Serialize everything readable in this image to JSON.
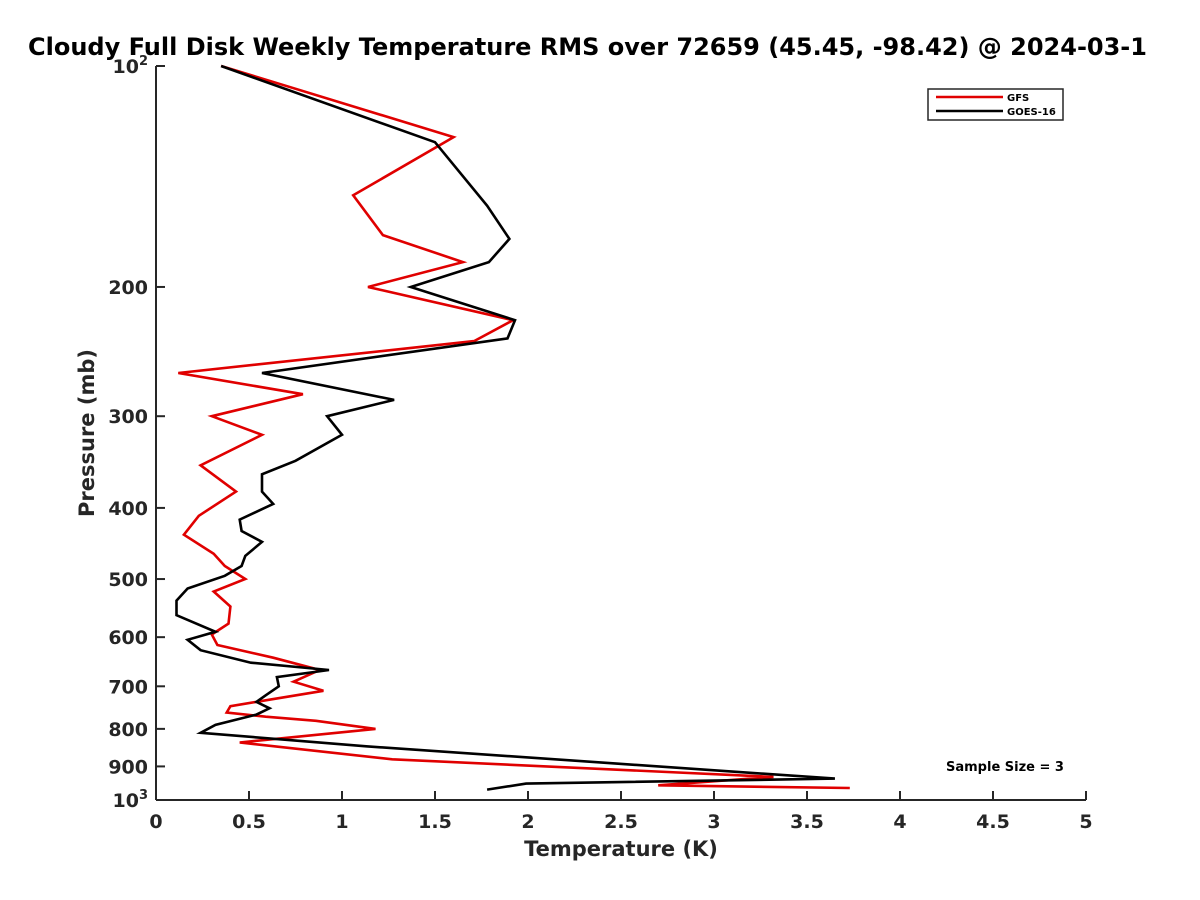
{
  "chart_data": {
    "type": "line",
    "title": "Cloudy Full Disk Weekly Temperature RMS over 72659 (45.45, -98.42) @ 2024-03-1",
    "xlabel": "Temperature (K)",
    "ylabel": "Pressure (mb)",
    "xlim": [
      0,
      5
    ],
    "ylim": [
      100,
      1000
    ],
    "y_scale": "log",
    "y_reversed": true,
    "x_ticks": [
      "0",
      "0.5",
      "1",
      "1.5",
      "2",
      "2.5",
      "3",
      "3.5",
      "4",
      "4.5",
      "5"
    ],
    "y_ticks": [
      {
        "value": 100,
        "base": "10",
        "exp": "2"
      },
      {
        "value": 200,
        "label": "200"
      },
      {
        "value": 300,
        "label": "300"
      },
      {
        "value": 400,
        "label": "400"
      },
      {
        "value": 500,
        "label": "500"
      },
      {
        "value": 600,
        "label": "600"
      },
      {
        "value": 700,
        "label": "700"
      },
      {
        "value": 800,
        "label": "800"
      },
      {
        "value": 900,
        "label": "900"
      },
      {
        "value": 1000,
        "base": "10",
        "exp": "3"
      }
    ],
    "grid": false,
    "legend_position": "top-right",
    "annotation": "Sample Size = 3",
    "series": [
      {
        "name": "GFS",
        "color": "#e00000",
        "points": [
          [
            0.35,
            100
          ],
          [
            1.6,
            125
          ],
          [
            1.06,
            150
          ],
          [
            1.22,
            170
          ],
          [
            1.65,
            185
          ],
          [
            1.14,
            200
          ],
          [
            1.92,
            222
          ],
          [
            1.71,
            237
          ],
          [
            0.12,
            262
          ],
          [
            0.79,
            280
          ],
          [
            0.3,
            300
          ],
          [
            0.57,
            318
          ],
          [
            0.24,
            350
          ],
          [
            0.43,
            380
          ],
          [
            0.23,
            410
          ],
          [
            0.15,
            435
          ],
          [
            0.31,
            462
          ],
          [
            0.37,
            480
          ],
          [
            0.48,
            500
          ],
          [
            0.31,
            520
          ],
          [
            0.4,
            545
          ],
          [
            0.39,
            575
          ],
          [
            0.3,
            595
          ],
          [
            0.33,
            615
          ],
          [
            0.63,
            640
          ],
          [
            0.88,
            665
          ],
          [
            0.74,
            690
          ],
          [
            0.9,
            710
          ],
          [
            0.61,
            730
          ],
          [
            0.4,
            745
          ],
          [
            0.38,
            760
          ],
          [
            0.59,
            770
          ],
          [
            0.86,
            780
          ],
          [
            1.18,
            800
          ],
          [
            0.45,
            835
          ],
          [
            1.27,
            880
          ],
          [
            3.32,
            930
          ],
          [
            2.7,
            955
          ],
          [
            3.73,
            963
          ]
        ]
      },
      {
        "name": "GOES-16",
        "color": "#000000",
        "points": [
          [
            0.35,
            100
          ],
          [
            1.5,
            127
          ],
          [
            1.78,
            155
          ],
          [
            1.9,
            172
          ],
          [
            1.79,
            185
          ],
          [
            1.37,
            200
          ],
          [
            1.93,
            222
          ],
          [
            1.89,
            235
          ],
          [
            0.57,
            262
          ],
          [
            1.28,
            285
          ],
          [
            0.92,
            300
          ],
          [
            1.0,
            318
          ],
          [
            0.75,
            345
          ],
          [
            0.57,
            360
          ],
          [
            0.57,
            380
          ],
          [
            0.63,
            395
          ],
          [
            0.45,
            415
          ],
          [
            0.46,
            430
          ],
          [
            0.57,
            445
          ],
          [
            0.48,
            465
          ],
          [
            0.46,
            480
          ],
          [
            0.37,
            495
          ],
          [
            0.17,
            515
          ],
          [
            0.11,
            535
          ],
          [
            0.11,
            560
          ],
          [
            0.32,
            590
          ],
          [
            0.17,
            605
          ],
          [
            0.24,
            625
          ],
          [
            0.51,
            650
          ],
          [
            0.93,
            665
          ],
          [
            0.65,
            680
          ],
          [
            0.66,
            700
          ],
          [
            0.59,
            720
          ],
          [
            0.54,
            735
          ],
          [
            0.61,
            750
          ],
          [
            0.54,
            765
          ],
          [
            0.32,
            790
          ],
          [
            0.24,
            810
          ],
          [
            1.13,
            845
          ],
          [
            3.65,
            935
          ],
          [
            1.99,
            950
          ],
          [
            1.78,
            968
          ]
        ]
      }
    ]
  }
}
